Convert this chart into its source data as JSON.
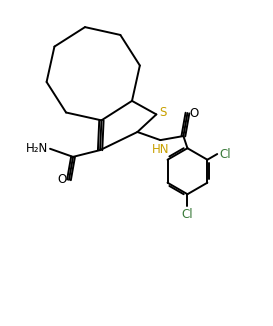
{
  "background_color": "#ffffff",
  "line_color": "#000000",
  "S_color": "#c8a000",
  "Cl_color": "#3a7a3a",
  "figsize": [
    2.73,
    3.26
  ],
  "dpi": 100,
  "lw": 1.4,
  "xlim": [
    0,
    10
  ],
  "ylim": [
    0,
    12
  ]
}
